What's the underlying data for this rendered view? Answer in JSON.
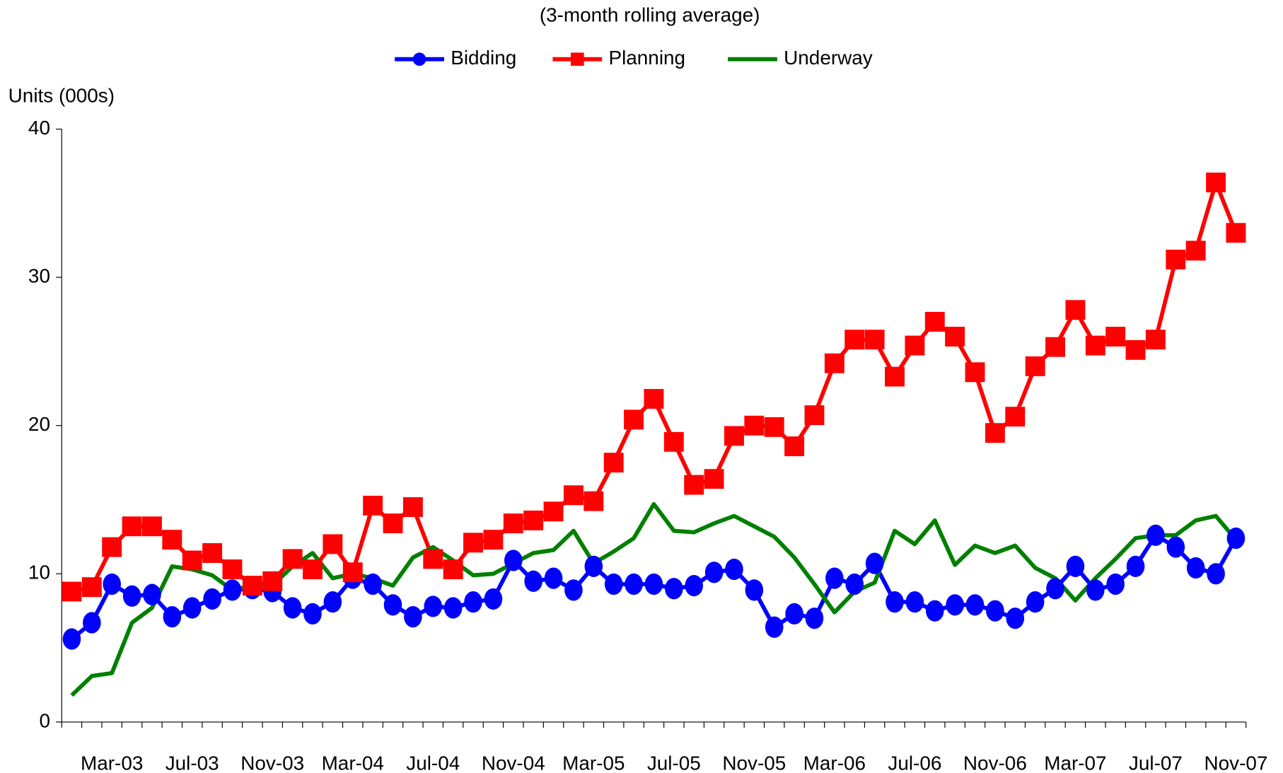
{
  "chart_data": {
    "type": "line",
    "subtitle": "(3-month rolling average)",
    "y_label": "Units (000s)",
    "categories": [
      null,
      null,
      "Mar-03",
      null,
      null,
      null,
      "Jul-03",
      null,
      null,
      null,
      "Nov-03",
      null,
      null,
      null,
      "Mar-04",
      null,
      null,
      null,
      "Jul-04",
      null,
      null,
      null,
      "Nov-04",
      null,
      null,
      null,
      "Mar-05",
      null,
      null,
      null,
      "Jul-05",
      null,
      null,
      null,
      "Nov-05",
      null,
      null,
      null,
      "Mar-06",
      null,
      null,
      null,
      "Jul-06",
      null,
      null,
      null,
      "Nov-06",
      null,
      null,
      null,
      "Mar-07",
      null,
      null,
      null,
      "Jul-07",
      null,
      null,
      null,
      "Nov-07"
    ],
    "ylim": [
      0,
      40
    ],
    "yticks": [
      0,
      10,
      20,
      30,
      40
    ],
    "legend": "top",
    "series": [
      {
        "name": "Bidding",
        "color": "#0000ff",
        "marker": "circle",
        "values": [
          5.6,
          6.7,
          9.3,
          8.5,
          8.6,
          7.1,
          7.7,
          8.3,
          8.9,
          9.0,
          8.8,
          7.7,
          7.3,
          8.1,
          9.7,
          9.3,
          7.9,
          7.1,
          7.8,
          7.7,
          8.1,
          8.3,
          10.9,
          9.5,
          9.7,
          8.9,
          10.5,
          9.3,
          9.3,
          9.3,
          9.0,
          9.2,
          10.1,
          10.3,
          8.9,
          6.4,
          7.3,
          7.0,
          9.7,
          9.3,
          10.7,
          8.1,
          8.1,
          7.5,
          7.9,
          7.9,
          7.5,
          7.0,
          8.1,
          9.0,
          10.5,
          8.9,
          9.3,
          10.5,
          12.6,
          11.8,
          10.4,
          10.0,
          12.4
        ]
      },
      {
        "name": "Planning",
        "color": "#ff0000",
        "marker": "square",
        "values": [
          8.8,
          9.1,
          11.8,
          13.2,
          13.2,
          12.3,
          10.9,
          11.4,
          10.3,
          9.2,
          9.5,
          11.0,
          10.3,
          12.0,
          10.1,
          14.6,
          13.4,
          14.5,
          11.0,
          10.3,
          12.1,
          12.3,
          13.4,
          13.6,
          14.2,
          15.3,
          14.9,
          17.5,
          20.4,
          21.8,
          18.9,
          16.0,
          16.4,
          19.3,
          20.0,
          19.9,
          18.6,
          20.7,
          24.2,
          25.8,
          25.8,
          23.3,
          25.4,
          27.0,
          26.0,
          23.6,
          19.5,
          20.6,
          24.0,
          25.3,
          27.8,
          25.4,
          26.0,
          25.1,
          25.8,
          31.2,
          31.8,
          36.4,
          33.0
        ]
      },
      {
        "name": "Underway",
        "color": "#008000",
        "marker": "none",
        "values": [
          1.8,
          3.1,
          3.3,
          6.7,
          7.7,
          10.5,
          10.3,
          9.9,
          8.9,
          9.2,
          9.2,
          10.5,
          11.4,
          9.7,
          10.0,
          9.7,
          9.2,
          11.1,
          11.8,
          10.9,
          9.9,
          10.0,
          10.7,
          11.4,
          11.6,
          12.9,
          10.7,
          11.5,
          12.4,
          14.7,
          12.9,
          12.8,
          13.4,
          13.9,
          13.2,
          12.5,
          11.1,
          9.3,
          7.4,
          8.8,
          9.4,
          12.9,
          12.0,
          13.6,
          10.6,
          11.9,
          11.4,
          11.9,
          10.4,
          9.7,
          8.2,
          9.7,
          11.0,
          12.4,
          12.6,
          12.6,
          13.6,
          13.9,
          12.3
        ]
      }
    ]
  }
}
